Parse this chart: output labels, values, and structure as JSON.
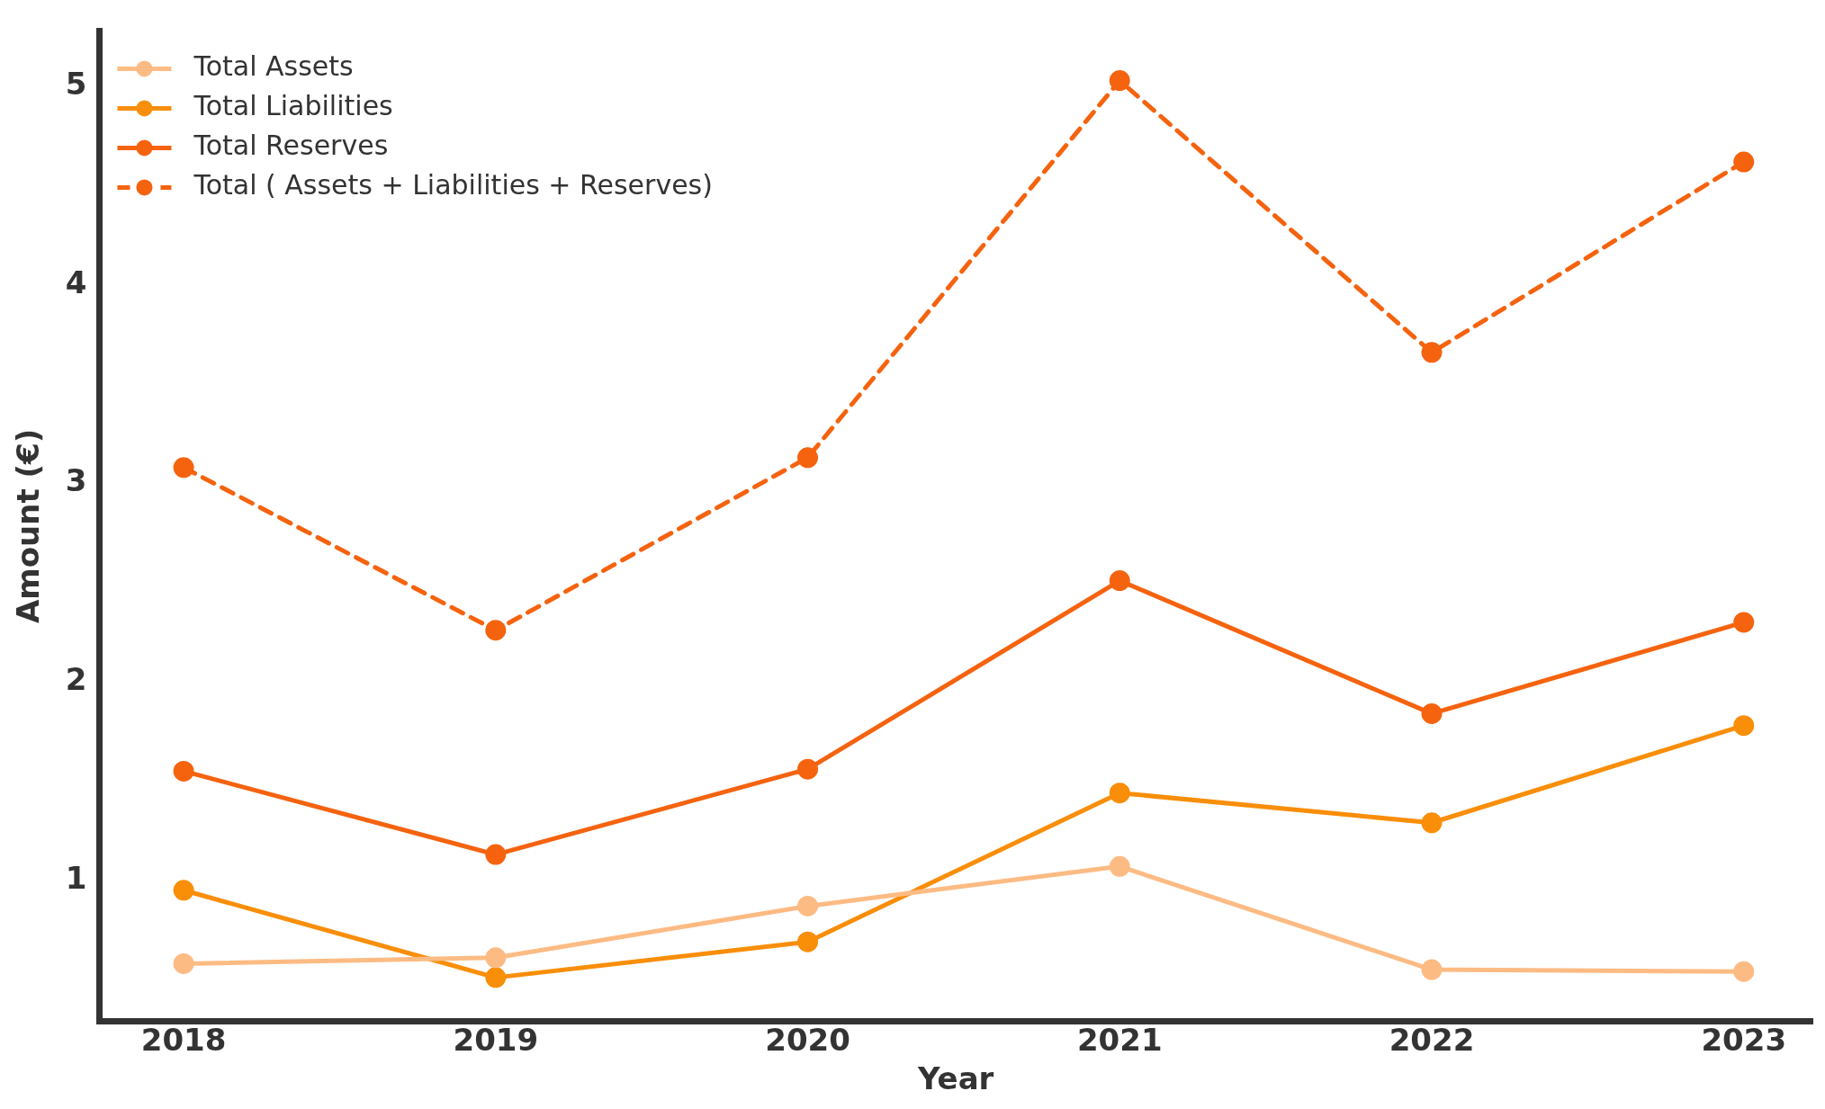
{
  "chart_data": {
    "type": "line",
    "xlabel": "Year",
    "ylabel": "Amount (€)",
    "x": [
      2018,
      2019,
      2020,
      2021,
      2022,
      2023
    ],
    "xlim": [
      2017.73,
      2023.22
    ],
    "xticks": [
      2018,
      2019,
      2020,
      2021,
      2022,
      2023
    ],
    "ylim": [
      0.29,
      5.28
    ],
    "yticks": [
      1,
      2,
      3,
      4,
      5
    ],
    "grid": false,
    "legend": "top left",
    "marker": "circle",
    "series": [
      {
        "name": "Total Assets",
        "color": "#fdbb84",
        "values": [
          0.58,
          0.61,
          0.87,
          1.07,
          0.55,
          0.54
        ]
      },
      {
        "name": "Total Liabilities",
        "color": "#f98e09",
        "values": [
          0.95,
          0.51,
          0.69,
          1.44,
          1.29,
          1.78
        ]
      },
      {
        "name": "Total Reserves",
        "color": "#f5630f",
        "values": [
          1.55,
          1.13,
          1.56,
          2.51,
          1.84,
          2.3
        ]
      },
      {
        "name": "Total ( Assets + Liabilities + Reserves)",
        "color": "#f5630f",
        "line_style": "dashed",
        "values": [
          3.08,
          2.26,
          3.13,
          5.03,
          3.66,
          4.62
        ]
      }
    ]
  }
}
